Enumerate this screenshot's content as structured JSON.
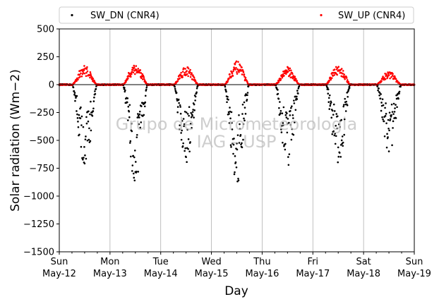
{
  "chart_data": {
    "type": "scatter",
    "ylabel": "Solar radiation ($Wm−2$)",
    "ylabel_display": "Solar radiation (Wm−2)",
    "xlabel": "Day",
    "ylim": [
      -1500,
      500
    ],
    "yticks": [
      500,
      250,
      0,
      -250,
      -500,
      -750,
      -1000,
      -1250,
      -1500
    ],
    "ytick_labels": [
      "500",
      "250",
      "0",
      "−250",
      "−500",
      "−750",
      "−1000",
      "−1250",
      "−1500"
    ],
    "x_range_days": [
      0,
      7
    ],
    "xtick_labels": [
      [
        "Sun",
        "May-12"
      ],
      [
        "Mon",
        "May-13"
      ],
      [
        "Tue",
        "May-14"
      ],
      [
        "Wed",
        "May-15"
      ],
      [
        "Thu",
        "May-16"
      ],
      [
        "Fri",
        "May-17"
      ],
      [
        "Sat",
        "May-18"
      ],
      [
        "Sun",
        "May-19"
      ]
    ],
    "grid": "vertical",
    "legend_placement": "top, outside",
    "watermark": [
      "Grupo de Micrometeorologia",
      "IAG - USP"
    ],
    "series": [
      {
        "name": "SW_DN (CNR4)",
        "color": "#000000",
        "daily_min": [
          -760,
          -880,
          -740,
          -900,
          -730,
          -730,
          -620
        ],
        "days": [
          "May-12",
          "May-13",
          "May-14",
          "May-15",
          "May-16",
          "May-17",
          "May-18"
        ]
      },
      {
        "name": "SW_UP (CNR4)",
        "color": "#ff0000",
        "daily_max": [
          175,
          195,
          170,
          210,
          160,
          180,
          120
        ],
        "days": [
          "May-12",
          "May-13",
          "May-14",
          "May-15",
          "May-16",
          "May-17",
          "May-18"
        ]
      }
    ]
  }
}
